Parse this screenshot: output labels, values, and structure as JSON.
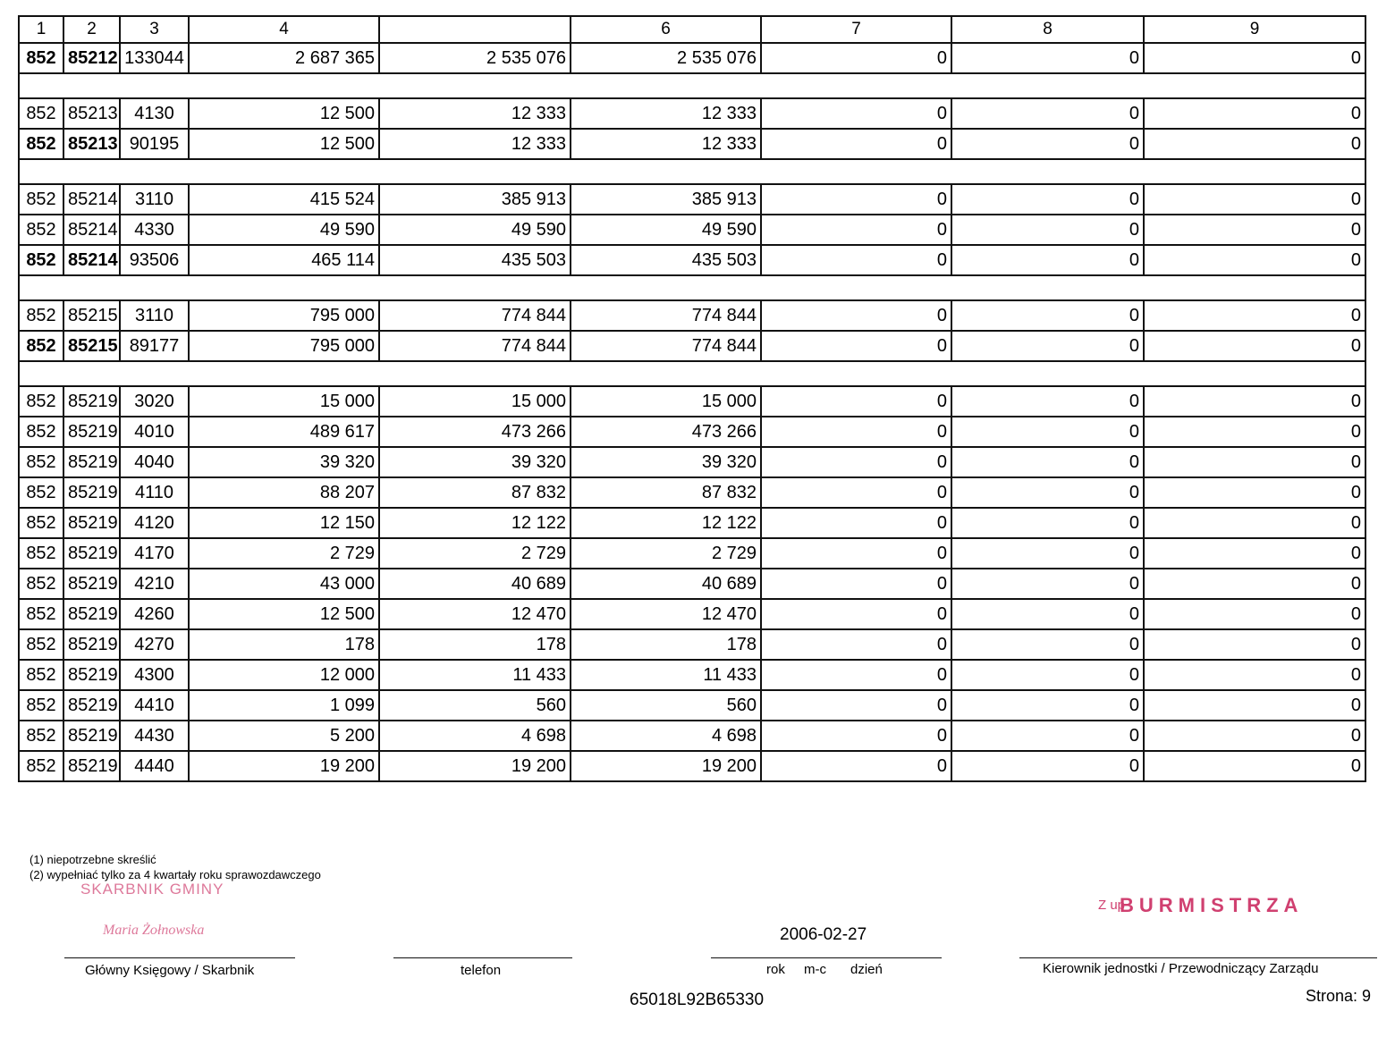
{
  "table": {
    "header": [
      "1",
      "2",
      "3",
      "4",
      null,
      "6",
      "7",
      "8",
      "9"
    ],
    "groups": [
      {
        "rows": [
          {
            "cells": [
              "852",
              "85212",
              "133044",
              "2 687 365",
              "2 535 076",
              "2 535 076",
              "0",
              "0",
              "0"
            ],
            "bold": true
          }
        ]
      },
      {
        "rows": [
          {
            "cells": [
              "852",
              "85213",
              "4130",
              "12 500",
              "12 333",
              "12 333",
              "0",
              "0",
              "0"
            ]
          },
          {
            "cells": [
              "852",
              "85213",
              "90195",
              "12 500",
              "12 333",
              "12 333",
              "0",
              "0",
              "0"
            ],
            "bold": true
          }
        ]
      },
      {
        "rows": [
          {
            "cells": [
              "852",
              "85214",
              "3110",
              "415 524",
              "385 913",
              "385 913",
              "0",
              "0",
              "0"
            ]
          },
          {
            "cells": [
              "852",
              "85214",
              "4330",
              "49 590",
              "49 590",
              "49 590",
              "0",
              "0",
              "0"
            ]
          },
          {
            "cells": [
              "852",
              "85214",
              "93506",
              "465 114",
              "435 503",
              "435 503",
              "0",
              "0",
              "0"
            ],
            "bold": true
          }
        ]
      },
      {
        "rows": [
          {
            "cells": [
              "852",
              "85215",
              "3110",
              "795 000",
              "774 844",
              "774 844",
              "0",
              "0",
              "0"
            ]
          },
          {
            "cells": [
              "852",
              "85215",
              "89177",
              "795 000",
              "774 844",
              "774 844",
              "0",
              "0",
              "0"
            ],
            "bold": true
          }
        ]
      },
      {
        "rows": [
          {
            "cells": [
              "852",
              "85219",
              "3020",
              "15 000",
              "15 000",
              "15 000",
              "0",
              "0",
              "0"
            ]
          },
          {
            "cells": [
              "852",
              "85219",
              "4010",
              "489 617",
              "473 266",
              "473 266",
              "0",
              "0",
              "0"
            ]
          },
          {
            "cells": [
              "852",
              "85219",
              "4040",
              "39 320",
              "39 320",
              "39 320",
              "0",
              "0",
              "0"
            ]
          },
          {
            "cells": [
              "852",
              "85219",
              "4110",
              "88 207",
              "87 832",
              "87 832",
              "0",
              "0",
              "0"
            ]
          },
          {
            "cells": [
              "852",
              "85219",
              "4120",
              "12 150",
              "12 122",
              "12 122",
              "0",
              "0",
              "0"
            ]
          },
          {
            "cells": [
              "852",
              "85219",
              "4170",
              "2 729",
              "2 729",
              "2 729",
              "0",
              "0",
              "0"
            ]
          },
          {
            "cells": [
              "852",
              "85219",
              "4210",
              "43 000",
              "40 689",
              "40 689",
              "0",
              "0",
              "0"
            ]
          },
          {
            "cells": [
              "852",
              "85219",
              "4260",
              "12 500",
              "12 470",
              "12 470",
              "0",
              "0",
              "0"
            ]
          },
          {
            "cells": [
              "852",
              "85219",
              "4270",
              "178",
              "178",
              "178",
              "0",
              "0",
              "0"
            ]
          },
          {
            "cells": [
              "852",
              "85219",
              "4300",
              "12 000",
              "11 433",
              "11 433",
              "0",
              "0",
              "0"
            ]
          },
          {
            "cells": [
              "852",
              "85219",
              "4410",
              "1 099",
              "560",
              "560",
              "0",
              "0",
              "0"
            ]
          },
          {
            "cells": [
              "852",
              "85219",
              "4430",
              "5 200",
              "4 698",
              "4 698",
              "0",
              "0",
              "0"
            ]
          },
          {
            "cells": [
              "852",
              "85219",
              "4440",
              "19 200",
              "19 200",
              "19 200",
              "0",
              "0",
              "0"
            ]
          }
        ]
      }
    ]
  },
  "footnotes": [
    "(1) niepotrzebne skreślić",
    "(2) wypełniać tylko za 4 kwartały roku sprawozdawczego"
  ],
  "stamps": {
    "left": "SKARBNIK GMINY",
    "left_name": "Maria Żołnowska",
    "right_prefix": "Z up",
    "right": "BURMISTRZA"
  },
  "signatures": {
    "accountant": "Główny Księgowy / Skarbnik",
    "phone": "telefon",
    "date": "2006-02-27",
    "date_parts": [
      "rok",
      "m-c",
      "dzień"
    ],
    "head": "Kierownik jednostki / Przewodniczący Zarządu"
  },
  "footer": {
    "code": "65018L92B65330",
    "page": "Strona: 9"
  }
}
